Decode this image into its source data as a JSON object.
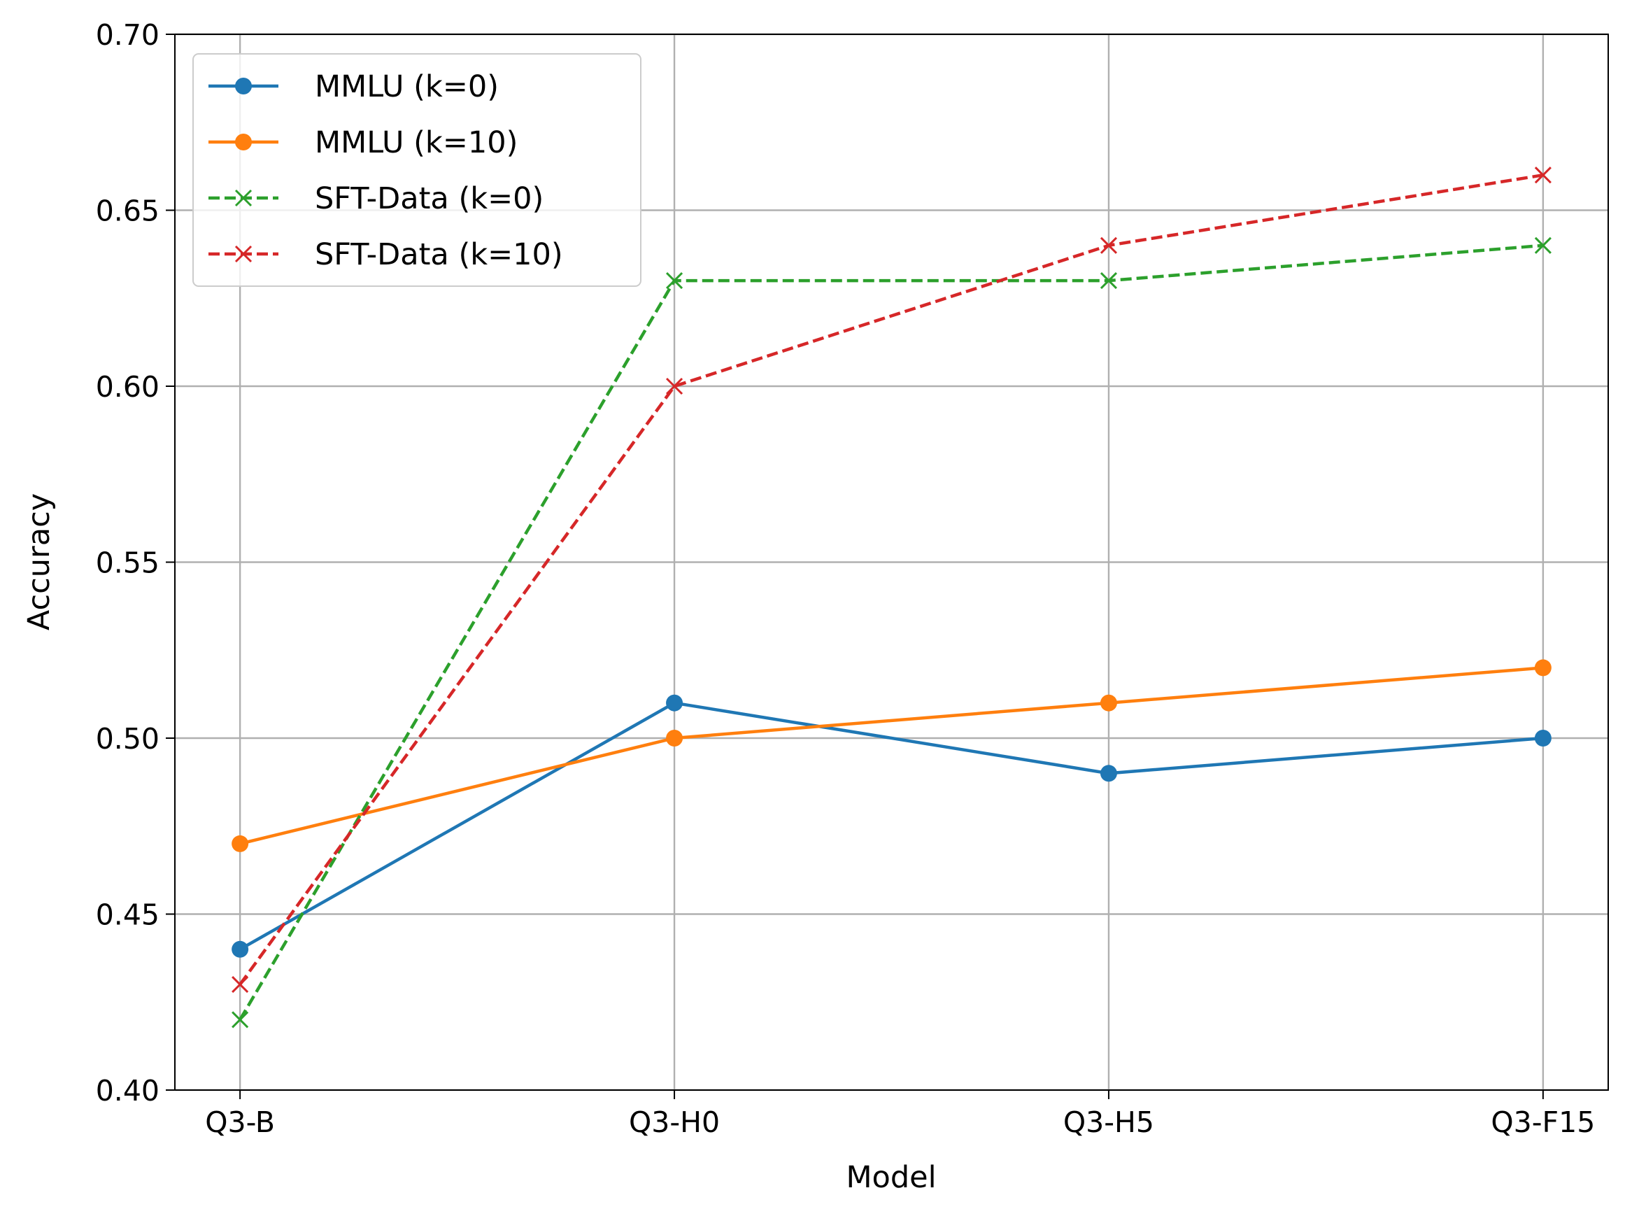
{
  "chart_data": {
    "type": "line",
    "title": "",
    "xlabel": "Model",
    "ylabel": "Accuracy",
    "categories": [
      "Q3-B",
      "Q3-H0",
      "Q3-H5",
      "Q3-F15"
    ],
    "ylim": [
      0.4,
      0.7
    ],
    "yticks": [
      "0.40",
      "0.45",
      "0.50",
      "0.55",
      "0.60",
      "0.65",
      "0.70"
    ],
    "grid": true,
    "legend_position": "top-left",
    "series": [
      {
        "name": "MMLU (k=0)",
        "values": [
          0.44,
          0.51,
          0.49,
          0.5
        ],
        "color": "#1f77b4",
        "style": "solid",
        "marker": "circle"
      },
      {
        "name": "MMLU (k=10)",
        "values": [
          0.47,
          0.5,
          0.51,
          0.52
        ],
        "color": "#ff7f0e",
        "style": "solid",
        "marker": "circle"
      },
      {
        "name": "SFT-Data (k=0)",
        "values": [
          0.42,
          0.63,
          0.63,
          0.64
        ],
        "color": "#2ca02c",
        "style": "dashed",
        "marker": "x"
      },
      {
        "name": "SFT-Data (k=10)",
        "values": [
          0.43,
          0.6,
          0.64,
          0.66
        ],
        "color": "#d62728",
        "style": "dashed",
        "marker": "x"
      }
    ]
  }
}
